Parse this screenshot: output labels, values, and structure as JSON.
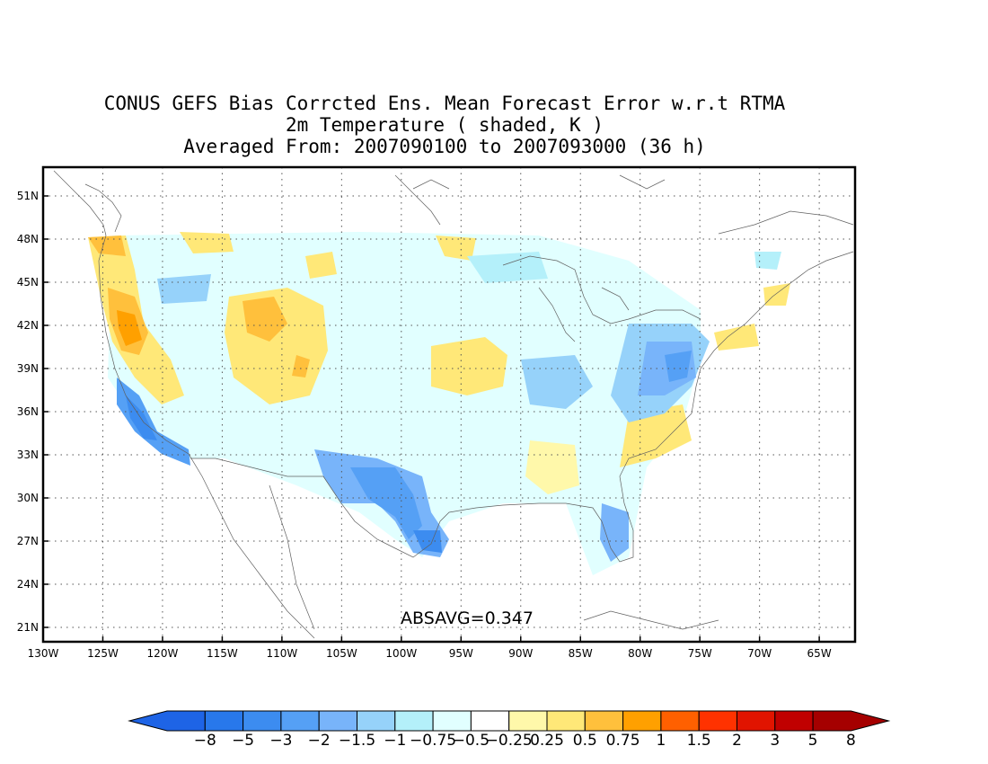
{
  "title": {
    "line1": "CONUS GEFS Bias Corrcted Ens. Mean Forecast Error w.r.t RTMA",
    "line2": "2m Temperature ( shaded, K )",
    "line3": "Averaged From: 2007090100 to 2007093000 (36 h)"
  },
  "annotation": "ABSAVG=0.347",
  "map": {
    "lon_range": [
      -130,
      -62
    ],
    "lat_range": [
      20,
      53
    ],
    "gridlines": "dotted",
    "lon_ticks": [
      {
        "value": -130,
        "label": "130W"
      },
      {
        "value": -125,
        "label": "125W"
      },
      {
        "value": -120,
        "label": "120W"
      },
      {
        "value": -115,
        "label": "115W"
      },
      {
        "value": -110,
        "label": "110W"
      },
      {
        "value": -105,
        "label": "105W"
      },
      {
        "value": -100,
        "label": "100W"
      },
      {
        "value": -95,
        "label": "95W"
      },
      {
        "value": -90,
        "label": "90W"
      },
      {
        "value": -85,
        "label": "85W"
      },
      {
        "value": -80,
        "label": "80W"
      },
      {
        "value": -75,
        "label": "75W"
      },
      {
        "value": -70,
        "label": "70W"
      },
      {
        "value": -65,
        "label": "65W"
      }
    ],
    "lat_ticks": [
      {
        "value": 21,
        "label": "21N"
      },
      {
        "value": 24,
        "label": "24N"
      },
      {
        "value": 27,
        "label": "27N"
      },
      {
        "value": 30,
        "label": "30N"
      },
      {
        "value": 33,
        "label": "33N"
      },
      {
        "value": 36,
        "label": "36N"
      },
      {
        "value": 39,
        "label": "39N"
      },
      {
        "value": 42,
        "label": "42N"
      },
      {
        "value": 45,
        "label": "45N"
      },
      {
        "value": 48,
        "label": "48N"
      },
      {
        "value": 51,
        "label": "51N"
      }
    ]
  },
  "colorbar": {
    "colors": [
      "#1e64e6",
      "#2878eb",
      "#3c8cf0",
      "#55a0f5",
      "#78b4fa",
      "#96d2fa",
      "#b4f0fa",
      "#e1ffff",
      "#ffffff",
      "#fff8aa",
      "#ffe878",
      "#ffc03c",
      "#ffa000",
      "#ff6000",
      "#ff3200",
      "#e11400",
      "#c00000",
      "#a50000"
    ],
    "labels": [
      "-8",
      "-5",
      "-3",
      "-2",
      "-1.5",
      "-1",
      "-0.75",
      "-0.5",
      "-0.25",
      "0.25",
      "0.5",
      "0.75",
      "1",
      "1.5",
      "2",
      "3",
      "5",
      "8"
    ]
  }
}
